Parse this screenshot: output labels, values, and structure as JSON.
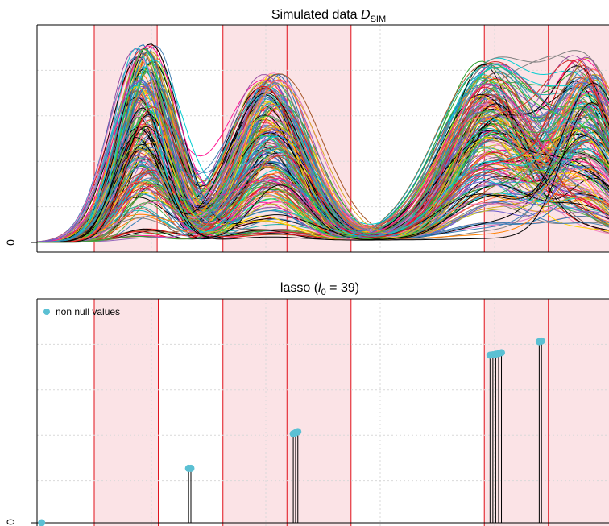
{
  "top_panel": {
    "title_main": "Simulated data ",
    "title_sym": "D",
    "title_sub": "SIM",
    "ytick": "0"
  },
  "bottom_panel": {
    "title_prefix": "lasso (",
    "title_sym": "l",
    "title_sub": "0",
    "title_suffix": " = 39)",
    "ytick": "0",
    "legend_label": "non null values",
    "legend_color": "#5bc0d3"
  },
  "colors": {
    "band_fill": "#fbe3e6",
    "band_border": "#e0101a",
    "point_color": "#5bc0d3",
    "grid": "#d9d9d9"
  },
  "chart_data": [
    {
      "type": "line",
      "title": "Simulated data D_SIM",
      "n_curves": 200,
      "xlim": [
        0,
        1
      ],
      "ylim": [
        0,
        1
      ],
      "yticks": [
        "0"
      ],
      "peaks": [
        {
          "center": 0.19,
          "width": 0.045,
          "max_height": 1.0
        },
        {
          "center": 0.41,
          "width": 0.06,
          "max_height": 0.85
        },
        {
          "center": 0.79,
          "width": 0.07,
          "max_height": 0.9
        },
        {
          "center": 0.96,
          "width": 0.055,
          "max_height": 0.85
        }
      ],
      "highlight_bands": [
        [
          0.1,
          0.21
        ],
        [
          0.325,
          0.437
        ],
        [
          0.437,
          0.549
        ],
        [
          0.782,
          0.894
        ],
        [
          0.894,
          1.0
        ]
      ]
    },
    {
      "type": "scatter",
      "title": "lasso (l0 = 39)",
      "xlim": [
        0,
        1
      ],
      "ylim": [
        0,
        1
      ],
      "yticks": [
        "0"
      ],
      "legend": "non null values",
      "nonzero_points": [
        {
          "x": 0.008,
          "y": 0.0
        },
        {
          "x": 0.265,
          "y": 0.26
        },
        {
          "x": 0.269,
          "y": 0.26
        },
        {
          "x": 0.448,
          "y": 0.425
        },
        {
          "x": 0.452,
          "y": 0.43
        },
        {
          "x": 0.456,
          "y": 0.435
        },
        {
          "x": 0.792,
          "y": 0.8
        },
        {
          "x": 0.797,
          "y": 0.802
        },
        {
          "x": 0.802,
          "y": 0.805
        },
        {
          "x": 0.807,
          "y": 0.808
        },
        {
          "x": 0.812,
          "y": 0.812
        },
        {
          "x": 0.878,
          "y": 0.865
        },
        {
          "x": 0.882,
          "y": 0.868
        }
      ],
      "highlight_bands": [
        [
          0.1,
          0.212
        ],
        [
          0.325,
          0.437
        ],
        [
          0.437,
          0.549
        ],
        [
          0.782,
          0.894
        ],
        [
          0.894,
          1.0
        ]
      ]
    }
  ]
}
